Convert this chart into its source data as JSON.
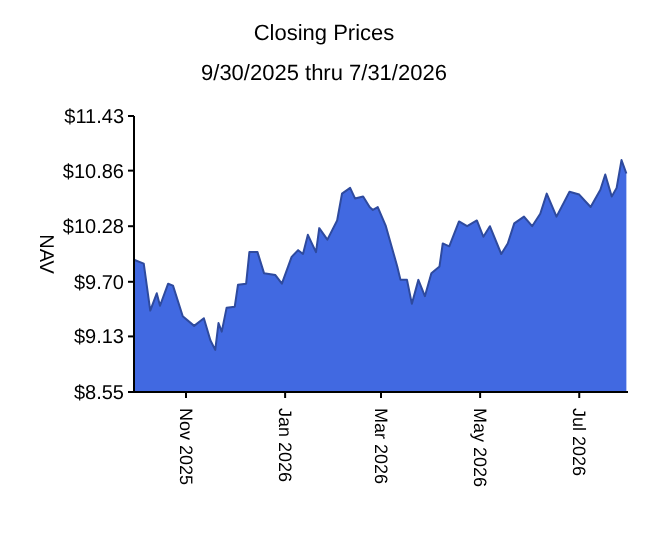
{
  "chart_data": {
    "type": "area",
    "title": "Closing Prices",
    "subtitle": "9/30/2025 thru 7/31/2026",
    "ylabel": "NAV",
    "x": [
      "2025-09-30",
      "2025-10-06",
      "2025-10-10",
      "2025-10-14",
      "2025-10-16",
      "2025-10-21",
      "2025-10-24",
      "2025-10-30",
      "2025-11-06",
      "2025-11-12",
      "2025-11-16",
      "2025-11-19",
      "2025-11-21",
      "2025-11-23",
      "2025-11-26",
      "2025-12-01",
      "2025-12-03",
      "2025-12-08",
      "2025-12-10",
      "2025-12-15",
      "2025-12-19",
      "2025-12-26",
      "2025-12-30",
      "2026-01-05",
      "2026-01-09",
      "2026-01-12",
      "2026-01-15",
      "2026-01-20",
      "2026-01-22",
      "2026-01-27",
      "2026-02-02",
      "2026-02-05",
      "2026-02-10",
      "2026-02-13",
      "2026-02-18",
      "2026-02-22",
      "2026-02-24",
      "2026-02-27",
      "2026-03-04",
      "2026-03-11",
      "2026-03-13",
      "2026-03-17",
      "2026-03-20",
      "2026-03-24",
      "2026-03-28",
      "2026-04-01",
      "2026-04-06",
      "2026-04-08",
      "2026-04-12",
      "2026-04-18",
      "2026-04-23",
      "2026-04-29",
      "2026-05-03",
      "2026-05-07",
      "2026-05-14",
      "2026-05-18",
      "2026-05-22",
      "2026-05-28",
      "2026-06-02",
      "2026-06-07",
      "2026-06-11",
      "2026-06-17",
      "2026-06-25",
      "2026-07-01",
      "2026-07-08",
      "2026-07-14",
      "2026-07-17",
      "2026-07-21",
      "2026-07-24",
      "2026-07-27",
      "2026-07-30"
    ],
    "series": [
      {
        "color": "#4169e1",
        "values": [
          9.93,
          9.89,
          9.4,
          9.58,
          9.45,
          9.68,
          9.66,
          9.34,
          9.24,
          9.32,
          9.09,
          8.99,
          9.27,
          9.18,
          9.43,
          9.44,
          9.67,
          9.68,
          10.01,
          10.01,
          9.79,
          9.77,
          9.68,
          9.96,
          10.03,
          9.99,
          10.19,
          10.01,
          10.26,
          10.14,
          10.34,
          10.62,
          10.68,
          10.57,
          10.59,
          10.48,
          10.45,
          10.48,
          10.28,
          9.86,
          9.72,
          9.72,
          9.47,
          9.72,
          9.55,
          9.79,
          9.86,
          10.1,
          10.07,
          10.33,
          10.28,
          10.34,
          10.17,
          10.28,
          9.99,
          10.1,
          10.31,
          10.38,
          10.28,
          10.41,
          10.62,
          10.38,
          10.64,
          10.61,
          10.48,
          10.66,
          10.82,
          10.59,
          10.68,
          10.97,
          10.83
        ]
      }
    ],
    "xlim": [
      "2025-09-30",
      "2026-07-31"
    ],
    "xticks": [
      {
        "value": "2025-11-01",
        "label": "Nov 2025"
      },
      {
        "value": "2026-01-01",
        "label": "Jan 2026"
      },
      {
        "value": "2026-03-01",
        "label": "Mar 2026"
      },
      {
        "value": "2026-05-01",
        "label": "May 2026"
      },
      {
        "value": "2026-07-01",
        "label": "Jul 2026"
      }
    ],
    "ylim": [
      8.55,
      11.43
    ],
    "yticks": [
      {
        "value": 8.55,
        "label": "$8.55"
      },
      {
        "value": 9.13,
        "label": "$9.13"
      },
      {
        "value": 9.7,
        "label": "$9.70"
      },
      {
        "value": 10.28,
        "label": "$10.28"
      },
      {
        "value": 10.86,
        "label": "$10.86"
      },
      {
        "value": 11.43,
        "label": "$11.43"
      }
    ],
    "grid": false
  }
}
